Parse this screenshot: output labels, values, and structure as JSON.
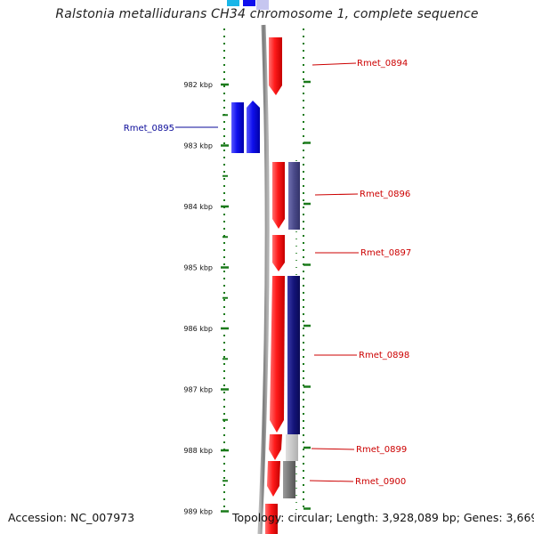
{
  "title": "Ralstonia metallidurans CH34 chromosome 1, complete sequence",
  "accession": "Accession: NC_007973",
  "summary": "Topology: circular; Length: 3,928,089 bp; Genes: 3,669",
  "ruler": {
    "unit": "kbp",
    "ticks": [
      {
        "label": "982 kbp",
        "kbp": 982
      },
      {
        "label": "983 kbp",
        "kbp": 983
      },
      {
        "label": "984 kbp",
        "kbp": 984
      },
      {
        "label": "985 kbp",
        "kbp": 985
      },
      {
        "label": "986 kbp",
        "kbp": 986
      },
      {
        "label": "987 kbp",
        "kbp": 987
      },
      {
        "label": "988 kbp",
        "kbp": 988
      },
      {
        "label": "989 kbp",
        "kbp": 989
      }
    ]
  },
  "genes": [
    {
      "name": "Rmet_0894",
      "strand": "forward",
      "labelled": true
    },
    {
      "name": "Rmet_0895",
      "strand": "reverse",
      "labelled": true
    },
    {
      "name": "Rmet_0896",
      "strand": "forward",
      "labelled": true
    },
    {
      "name": "Rmet_0897",
      "strand": "forward",
      "labelled": true
    },
    {
      "name": "Rmet_0898",
      "strand": "forward",
      "labelled": true
    },
    {
      "name": "Rmet_0899",
      "strand": "forward",
      "labelled": true
    },
    {
      "name": "Rmet_0900",
      "strand": "forward",
      "labelled": true
    }
  ],
  "colors": {
    "forward_cds": "#ff1a1a",
    "reverse_cds": "#1010ee",
    "forward_label": "#cc0000",
    "reverse_label": "#0a0a99",
    "cog_navy": "#14147a",
    "cog_slate": "#4a4a8a",
    "cog_gray_light": "#c4c4c4",
    "cog_gray_dark": "#6f6f6f",
    "backbone": "#8a8a8a",
    "ruler": "#1a7a1a"
  }
}
